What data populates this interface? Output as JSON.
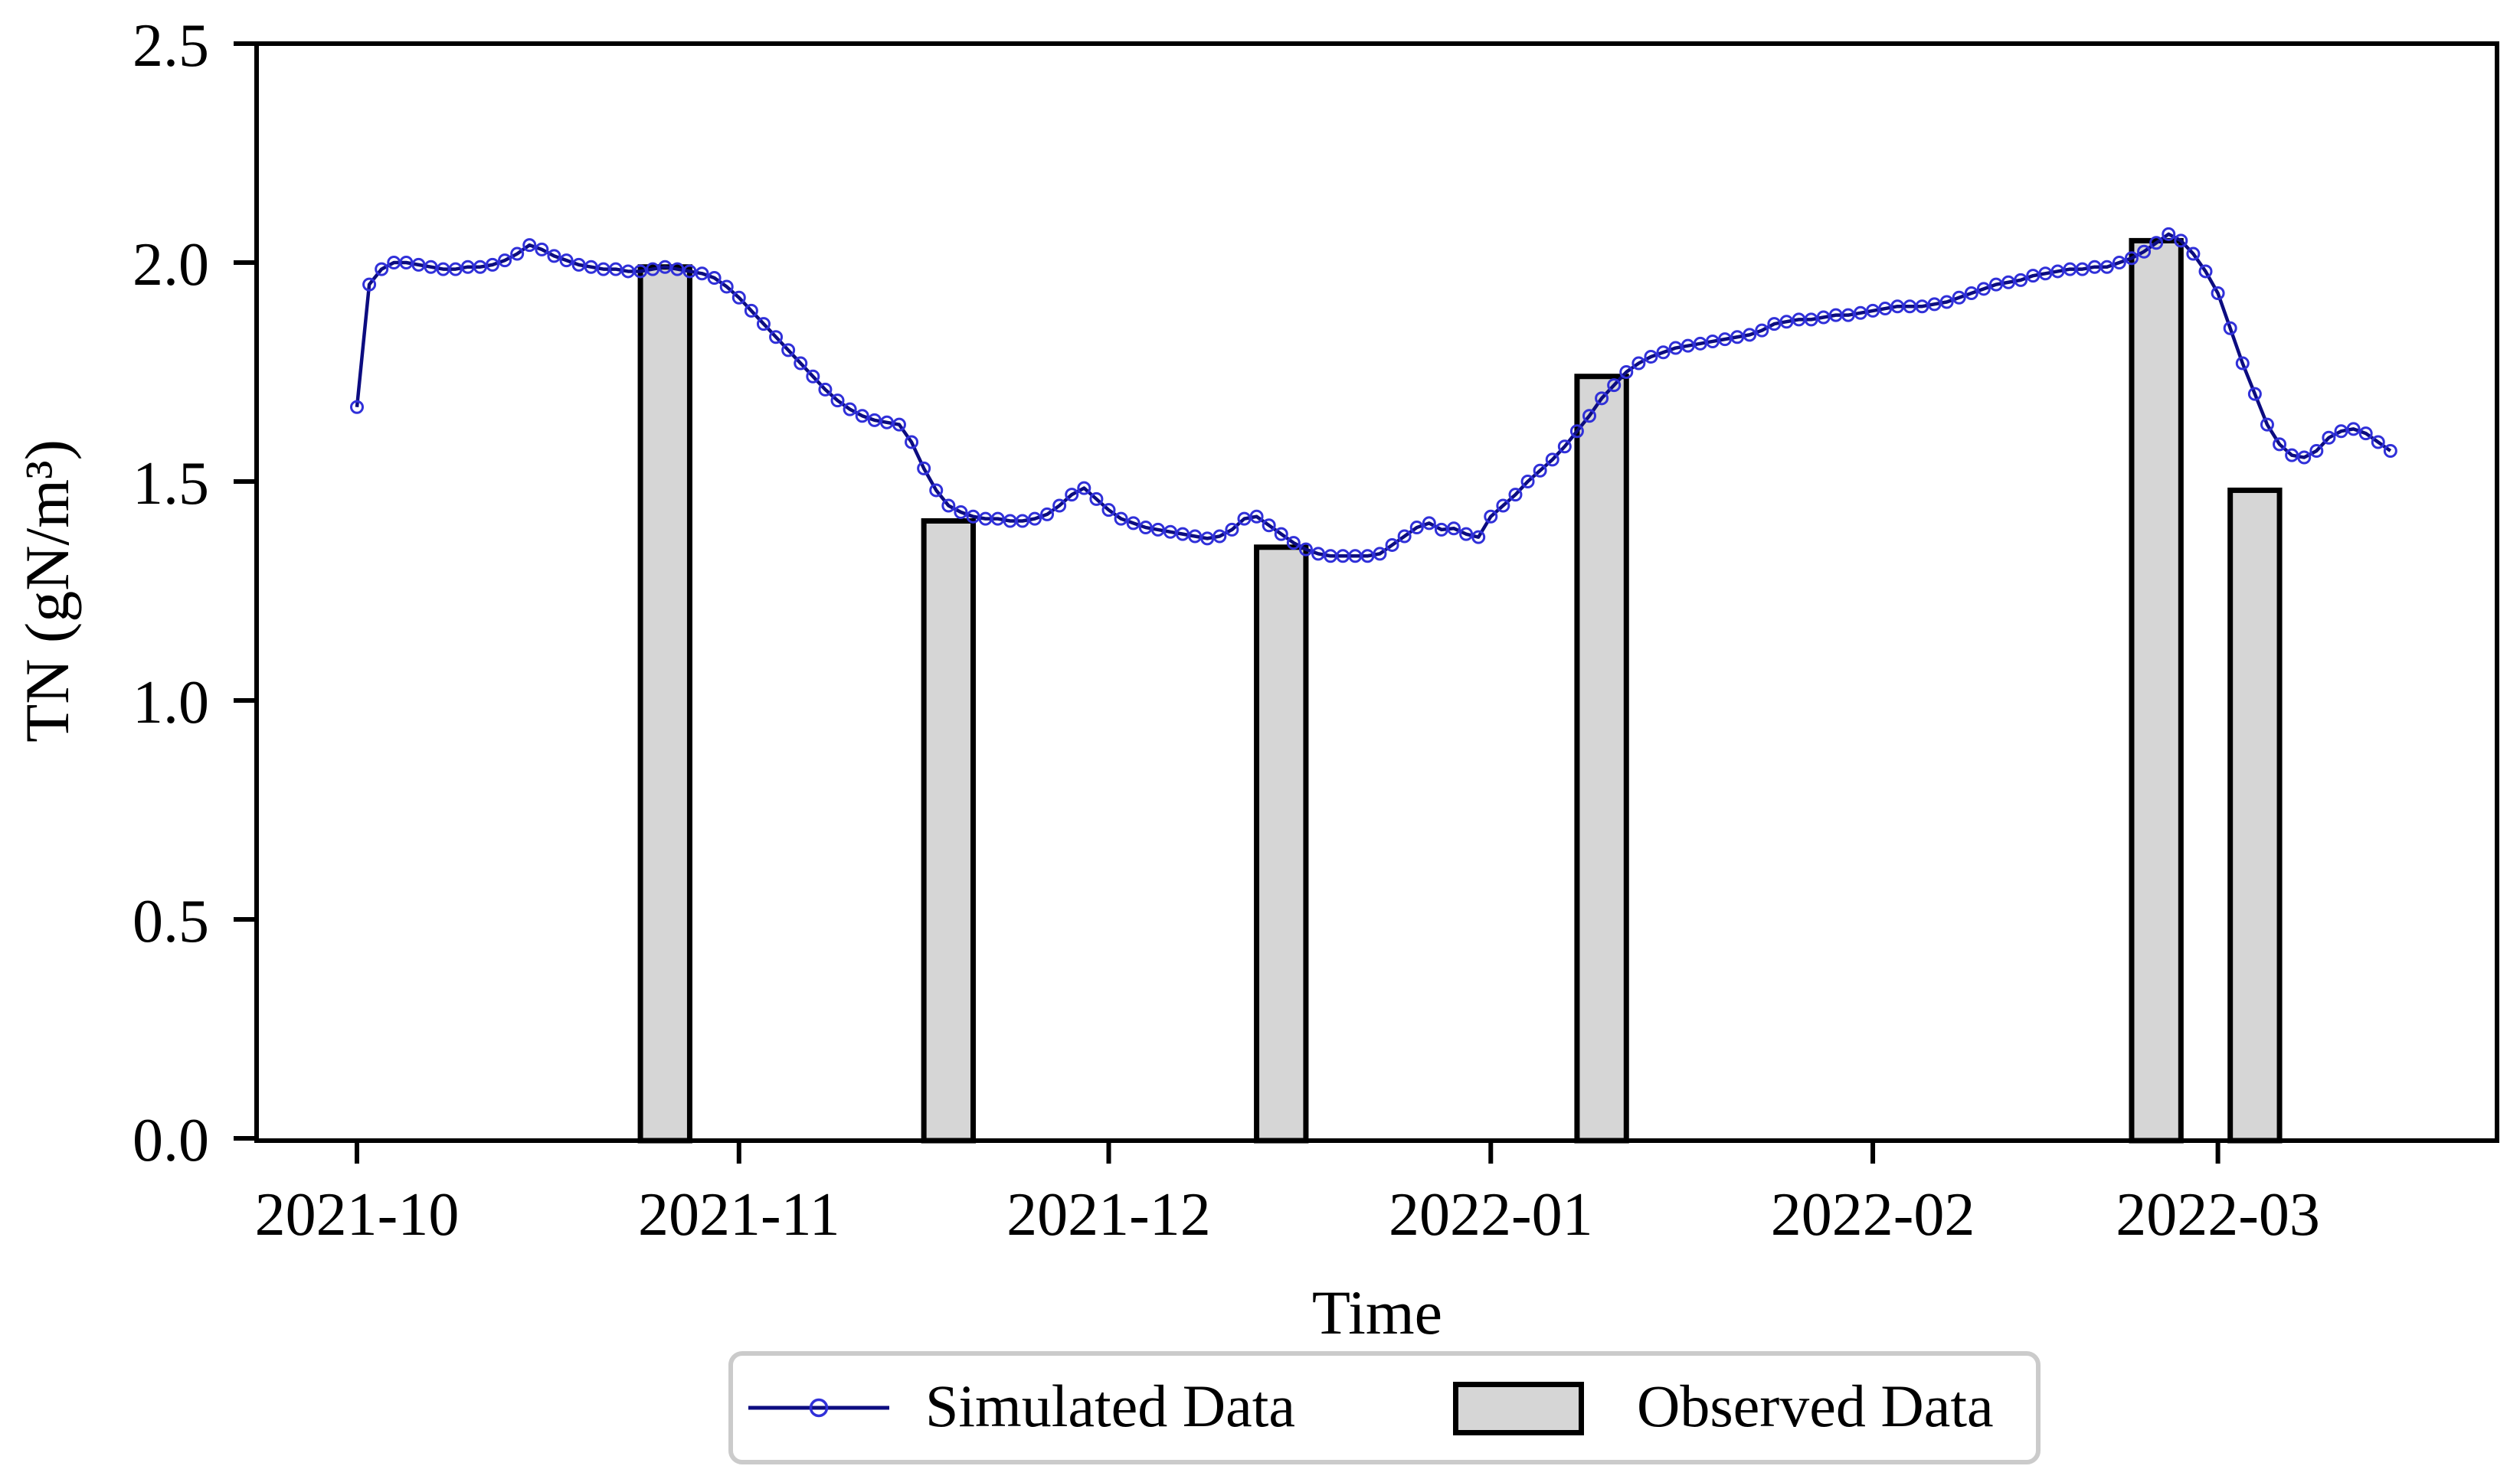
{
  "figure": {
    "colors": {
      "line": "#0c0c80",
      "marker_edge": "#3030d9",
      "bar_fill": "#d6d6d6",
      "bar_edge": "#000000",
      "axis": "#000000",
      "legend_border": "#cbcbcb"
    }
  },
  "legend": {
    "simulated_label": "Simulated Data",
    "observed_label": "Observed Data"
  },
  "chart_data": {
    "type": "line+bar",
    "title": "",
    "xlabel": "Time",
    "ylabel": "TN (gN/m³)",
    "ylim": [
      0.0,
      2.5
    ],
    "grid": false,
    "legend_position": "bottom-center-below-axis",
    "x_ticks": [
      "2021-10",
      "2021-11",
      "2021-12",
      "2022-01",
      "2022-02",
      "2022-03"
    ],
    "y_ticks": [
      "0.0",
      "0.5",
      "1.0",
      "1.5",
      "2.0",
      "2.5"
    ],
    "series": [
      {
        "name": "Simulated Data",
        "type": "line",
        "marker": "open-circle",
        "start_date": "2021-10-01",
        "frequency": "daily",
        "values": [
          1.67,
          1.95,
          1.985,
          2.0,
          2.0,
          1.995,
          1.99,
          1.985,
          1.985,
          1.99,
          1.99,
          1.995,
          2.005,
          2.02,
          2.04,
          2.03,
          2.015,
          2.005,
          1.995,
          1.99,
          1.985,
          1.985,
          1.98,
          1.98,
          1.985,
          1.99,
          1.985,
          1.98,
          1.975,
          1.965,
          1.945,
          1.92,
          1.89,
          1.86,
          1.83,
          1.8,
          1.77,
          1.74,
          1.71,
          1.685,
          1.665,
          1.65,
          1.64,
          1.635,
          1.63,
          1.59,
          1.53,
          1.48,
          1.445,
          1.43,
          1.42,
          1.415,
          1.415,
          1.41,
          1.41,
          1.415,
          1.425,
          1.445,
          1.47,
          1.485,
          1.46,
          1.435,
          1.415,
          1.405,
          1.395,
          1.39,
          1.385,
          1.38,
          1.375,
          1.37,
          1.375,
          1.39,
          1.415,
          1.42,
          1.4,
          1.38,
          1.36,
          1.345,
          1.335,
          1.33,
          1.33,
          1.33,
          1.33,
          1.335,
          1.355,
          1.375,
          1.395,
          1.405,
          1.39,
          1.393,
          1.38,
          1.373,
          1.42,
          1.445,
          1.47,
          1.5,
          1.525,
          1.55,
          1.58,
          1.615,
          1.65,
          1.69,
          1.72,
          1.75,
          1.77,
          1.785,
          1.795,
          1.805,
          1.81,
          1.815,
          1.82,
          1.825,
          1.83,
          1.835,
          1.845,
          1.86,
          1.865,
          1.87,
          1.87,
          1.875,
          1.88,
          1.88,
          1.885,
          1.89,
          1.895,
          1.9,
          1.9,
          1.9,
          1.905,
          1.91,
          1.92,
          1.93,
          1.94,
          1.95,
          1.955,
          1.96,
          1.97,
          1.975,
          1.98,
          1.985,
          1.985,
          1.99,
          1.99,
          2.0,
          2.01,
          2.025,
          2.045,
          2.065,
          2.05,
          2.02,
          1.98,
          1.93,
          1.85,
          1.77,
          1.7,
          1.63,
          1.585,
          1.56,
          1.555,
          1.57,
          1.6,
          1.615,
          1.62,
          1.61,
          1.59,
          1.57
        ]
      },
      {
        "name": "Observed Data",
        "type": "bar",
        "bar_width_days": 4,
        "dates": [
          "2021-10-26",
          "2021-11-18",
          "2021-12-15",
          "2022-01-10",
          "2022-02-24",
          "2022-03-04"
        ],
        "values": [
          1.99,
          1.41,
          1.35,
          1.74,
          2.05,
          1.48
        ]
      }
    ]
  }
}
